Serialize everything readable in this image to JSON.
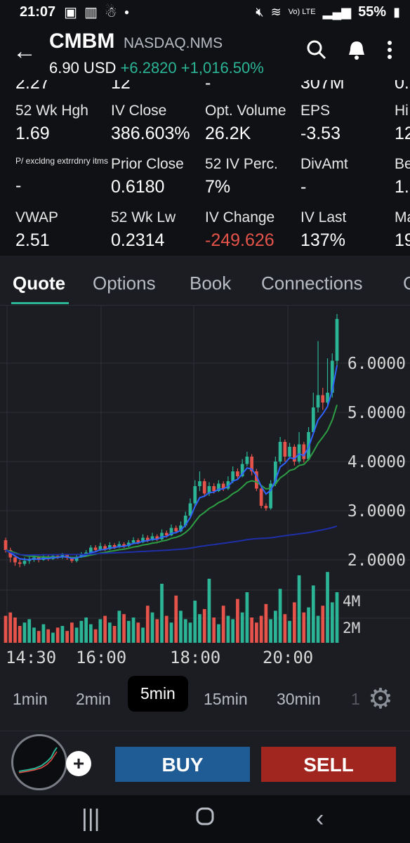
{
  "status_bar": {
    "time": "21:07",
    "battery": "55%",
    "network": "Vo) LTE",
    "icons": [
      "gallery-icon",
      "chart-icon",
      "app-icon",
      "dot-icon",
      "mute-icon",
      "wifi-icon",
      "signal-icon",
      "battery-icon"
    ]
  },
  "header": {
    "symbol": "CMBM",
    "exchange": "NASDAQ.NMS",
    "price": "6.90 USD",
    "change": "+6.2820",
    "change_pct": "+1,016.50%"
  },
  "stats": {
    "partial_row": [
      "2.27",
      "12",
      "-",
      "307M",
      "0."
    ],
    "rows": [
      [
        {
          "label": "52 Wk Hgh",
          "value": "1.69"
        },
        {
          "label": "IV Close",
          "value": "386.603%"
        },
        {
          "label": "Opt. Volume",
          "value": "26.2K"
        },
        {
          "label": "EPS",
          "value": "-3.53"
        },
        {
          "label": "Hi",
          "value": "12"
        }
      ],
      [
        {
          "label": "P/ excldng extrrdnry itms",
          "value": "-"
        },
        {
          "label": "Prior Close",
          "value": "0.6180"
        },
        {
          "label": "52 IV Perc.",
          "value": "7%"
        },
        {
          "label": "DivAmt",
          "value": "-"
        },
        {
          "label": "Be",
          "value": "1."
        }
      ],
      [
        {
          "label": "VWAP",
          "value": "2.51"
        },
        {
          "label": "52 Wk Lw",
          "value": "0.2314"
        },
        {
          "label": "IV Change",
          "value": "-249.626"
        },
        {
          "label": "IV Last",
          "value": "137%"
        },
        {
          "label": "Ma",
          "value": "19"
        }
      ]
    ]
  },
  "tabs": [
    "Quote",
    "Options",
    "Book",
    "Connections",
    "C"
  ],
  "active_tab": "Quote",
  "chart_data": {
    "type": "candlestick",
    "price_axis": [
      2.0,
      3.0,
      4.0,
      5.0,
      6.0
    ],
    "price_labels": [
      "6.0000",
      "5.0000",
      "4.0000",
      "3.0000",
      "2.0000"
    ],
    "volume_labels": [
      "4M",
      "2M"
    ],
    "x_labels": [
      "14:30",
      "16:00",
      "18:00",
      "20:00"
    ],
    "colors": {
      "up": "#2bb596",
      "down": "#e5534b",
      "ma_fast": "#2f62ff",
      "ma_slow": "#2e9e45",
      "vwap": "#1f2fa8"
    },
    "candles": [
      [
        2.4,
        2.2,
        2.45,
        2.15
      ],
      [
        2.2,
        2.05,
        2.25,
        1.95
      ],
      [
        2.05,
        1.95,
        2.1,
        1.88
      ],
      [
        1.95,
        1.92,
        2.0,
        1.85
      ],
      [
        1.92,
        1.98,
        2.05,
        1.88
      ],
      [
        1.98,
        2.0,
        2.06,
        1.92
      ],
      [
        2.0,
        2.05,
        2.1,
        1.96
      ],
      [
        2.05,
        2.0,
        2.08,
        1.95
      ],
      [
        2.0,
        2.06,
        2.12,
        1.98
      ],
      [
        2.06,
        2.02,
        2.1,
        1.98
      ],
      [
        2.02,
        2.08,
        2.12,
        2.0
      ],
      [
        2.08,
        2.05,
        2.12,
        2.02
      ],
      [
        2.05,
        2.1,
        2.14,
        2.02
      ],
      [
        2.1,
        2.04,
        2.12,
        2.0
      ],
      [
        2.04,
        1.98,
        2.06,
        1.94
      ],
      [
        1.98,
        2.06,
        2.1,
        1.95
      ],
      [
        2.06,
        2.12,
        2.16,
        2.04
      ],
      [
        2.12,
        2.15,
        2.2,
        2.08
      ],
      [
        2.15,
        2.25,
        2.3,
        2.12
      ],
      [
        2.25,
        2.2,
        2.3,
        2.16
      ],
      [
        2.2,
        2.28,
        2.35,
        2.18
      ],
      [
        2.28,
        2.22,
        2.32,
        2.18
      ],
      [
        2.22,
        2.3,
        2.36,
        2.2
      ],
      [
        2.3,
        2.26,
        2.34,
        2.22
      ],
      [
        2.26,
        2.32,
        2.38,
        2.24
      ],
      [
        2.32,
        2.28,
        2.36,
        2.24
      ],
      [
        2.28,
        2.35,
        2.4,
        2.26
      ],
      [
        2.35,
        2.4,
        2.46,
        2.32
      ],
      [
        2.4,
        2.36,
        2.44,
        2.32
      ],
      [
        2.36,
        2.45,
        2.52,
        2.34
      ],
      [
        2.45,
        2.4,
        2.5,
        2.36
      ],
      [
        2.4,
        2.48,
        2.55,
        2.38
      ],
      [
        2.48,
        2.42,
        2.52,
        2.38
      ],
      [
        2.42,
        2.55,
        2.62,
        2.4
      ],
      [
        2.55,
        2.5,
        2.6,
        2.45
      ],
      [
        2.5,
        2.65,
        2.72,
        2.48
      ],
      [
        2.65,
        2.58,
        2.7,
        2.54
      ],
      [
        2.58,
        2.7,
        2.78,
        2.56
      ],
      [
        2.7,
        2.9,
        2.98,
        2.66
      ],
      [
        2.9,
        3.15,
        3.25,
        2.88
      ],
      [
        3.15,
        3.5,
        3.62,
        3.1
      ],
      [
        3.5,
        3.6,
        3.8,
        3.4
      ],
      [
        3.6,
        3.35,
        3.65,
        3.28
      ],
      [
        3.35,
        3.5,
        3.58,
        3.3
      ],
      [
        3.5,
        3.4,
        3.56,
        3.35
      ],
      [
        3.4,
        3.55,
        3.62,
        3.38
      ],
      [
        3.55,
        3.45,
        3.6,
        3.4
      ],
      [
        3.45,
        3.6,
        3.7,
        3.42
      ],
      [
        3.6,
        3.8,
        3.9,
        3.56
      ],
      [
        3.8,
        3.7,
        3.86,
        3.65
      ],
      [
        3.7,
        3.95,
        4.05,
        3.68
      ],
      [
        3.95,
        4.1,
        4.2,
        3.9
      ],
      [
        4.1,
        3.8,
        4.15,
        3.72
      ],
      [
        3.8,
        3.45,
        3.85,
        3.4
      ],
      [
        3.45,
        3.1,
        3.5,
        3.05
      ],
      [
        3.1,
        3.05,
        3.15,
        3.0
      ],
      [
        3.05,
        3.55,
        3.62,
        3.02
      ],
      [
        3.55,
        4.0,
        4.1,
        3.5
      ],
      [
        4.0,
        4.4,
        4.5,
        3.95
      ],
      [
        4.4,
        4.1,
        4.45,
        4.0
      ],
      [
        4.1,
        4.3,
        4.38,
        4.05
      ],
      [
        4.3,
        4.0,
        4.35,
        3.92
      ],
      [
        4.0,
        4.35,
        4.6,
        3.96
      ],
      [
        4.35,
        4.05,
        4.4,
        3.98
      ],
      [
        4.05,
        4.6,
        4.7,
        4.02
      ],
      [
        4.6,
        5.1,
        5.4,
        4.55
      ],
      [
        5.1,
        5.35,
        6.45,
        5.0
      ],
      [
        5.35,
        5.2,
        5.5,
        5.05
      ],
      [
        5.2,
        5.4,
        6.1,
        5.15
      ],
      [
        5.4,
        6.05,
        6.2,
        5.3
      ],
      [
        6.05,
        6.9,
        7.0,
        5.95
      ]
    ],
    "volumes": [
      1.6,
      1.8,
      1.5,
      1.0,
      1.2,
      1.4,
      0.9,
      0.7,
      1.1,
      0.8,
      0.6,
      0.9,
      1.0,
      0.7,
      1.2,
      0.9,
      1.3,
      1.5,
      1.1,
      0.8,
      1.4,
      1.6,
      1.2,
      1.0,
      1.9,
      1.7,
      1.3,
      1.5,
      1.2,
      0.9,
      2.2,
      1.8,
      1.4,
      3.5,
      1.6,
      1.2,
      2.8,
      1.9,
      1.4,
      1.2,
      2.5,
      1.7,
      2.0,
      3.8,
      1.5,
      1.1,
      2.2,
      1.6,
      1.4,
      2.6,
      1.8,
      3.0,
      1.5,
      1.2,
      1.6,
      2.3,
      1.4,
      1.9,
      3.2,
      1.7,
      1.3,
      2.4,
      4.0,
      1.8,
      2.1,
      3.4,
      1.6,
      2.2,
      4.2,
      2.4,
      3.0
    ]
  },
  "intervals": [
    "1min",
    "2min",
    "5min",
    "15min",
    "30min",
    "1"
  ],
  "active_interval": "5min",
  "actions": {
    "buy": "BUY",
    "sell": "SELL"
  }
}
